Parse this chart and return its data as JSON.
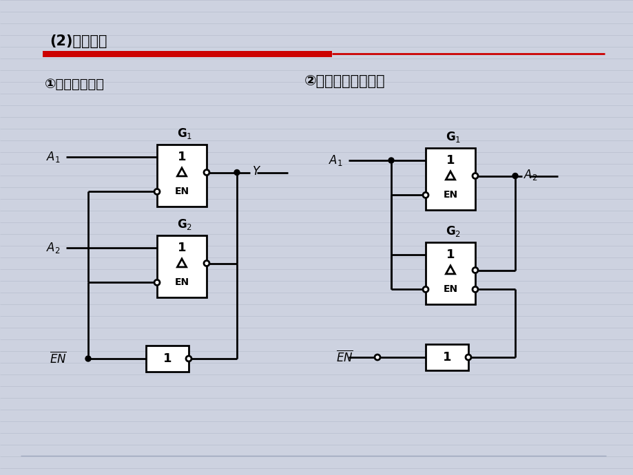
{
  "bg_color": "#cdd2e0",
  "line_color": "#000000",
  "box_color": "#ffffff",
  "red_bar_color": "#cc0000",
  "figsize": [
    9.2,
    6.9
  ],
  "dpi": 100,
  "title_text": "(2)应用举例",
  "subtitle1": "①用做多路开关",
  "subtitle2": "②用于信号双向传输"
}
